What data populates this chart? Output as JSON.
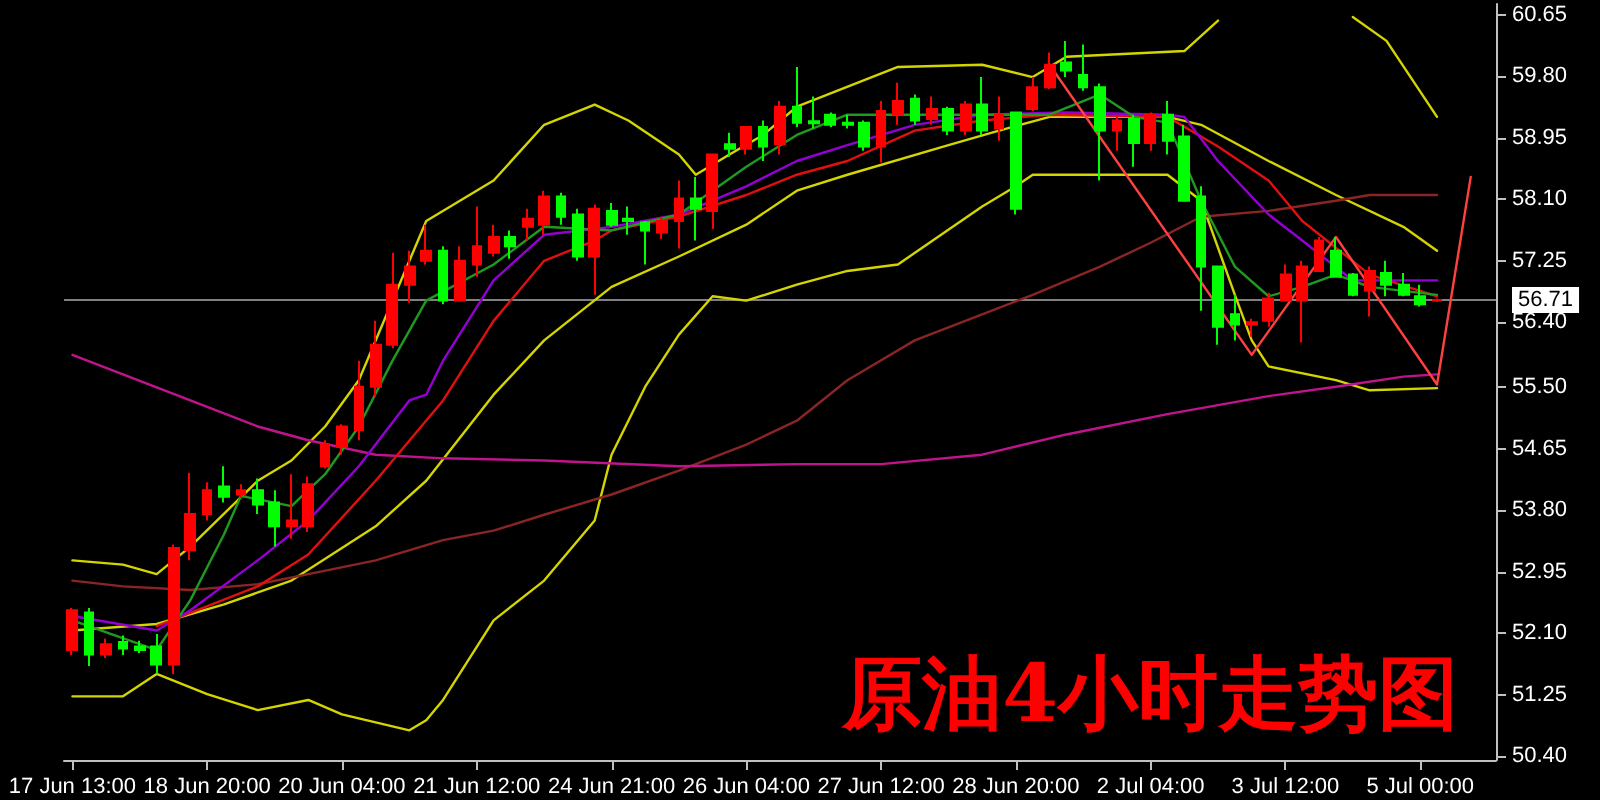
{
  "chart_data": {
    "type": "candlestick",
    "title": "原油4小时走势图",
    "categories": [
      "17 Jun 13:00",
      null,
      null,
      null,
      null,
      null,
      null,
      null,
      "18 Jun 20:00",
      null,
      null,
      null,
      null,
      null,
      null,
      null,
      "20 Jun 04:00",
      null,
      null,
      null,
      null,
      null,
      null,
      null,
      "21 Jun 12:00",
      null,
      null,
      null,
      null,
      null,
      null,
      null,
      "24 Jun 21:00",
      null,
      null,
      null,
      null,
      null,
      null,
      null,
      "26 Jun 04:00",
      null,
      null,
      null,
      null,
      null,
      null,
      null,
      "27 Jun 12:00",
      null,
      null,
      null,
      null,
      null,
      null,
      null,
      "28 Jun 20:00",
      null,
      null,
      null,
      null,
      null,
      null,
      null,
      "2 Jul 04:00",
      null,
      null,
      null,
      null,
      null,
      null,
      null,
      "3 Jul 12:00",
      null,
      null,
      null,
      null,
      null,
      null,
      null,
      "5 Jul 00:00",
      null,
      null,
      null,
      null
    ],
    "ohlc": [
      [
        51.87,
        52.45,
        51.8,
        52.42
      ],
      [
        52.39,
        52.45,
        51.65,
        51.81
      ],
      [
        51.81,
        52.03,
        51.76,
        51.95
      ],
      [
        51.98,
        52.07,
        51.8,
        51.89
      ],
      [
        51.92,
        52.0,
        51.83,
        51.87
      ],
      [
        51.92,
        52.09,
        51.54,
        51.67
      ],
      [
        51.67,
        53.33,
        51.54,
        53.28
      ],
      [
        53.25,
        54.32,
        53.11,
        53.75
      ],
      [
        53.75,
        54.19,
        53.66,
        54.08
      ],
      [
        54.13,
        54.41,
        53.91,
        53.99
      ],
      [
        54.02,
        54.16,
        53.97,
        54.08
      ],
      [
        54.08,
        54.24,
        53.75,
        53.88
      ],
      [
        53.91,
        54.08,
        53.3,
        53.58
      ],
      [
        53.58,
        54.3,
        53.41,
        53.66
      ],
      [
        53.58,
        54.27,
        53.5,
        54.16
      ],
      [
        54.41,
        54.77,
        54.38,
        54.71
      ],
      [
        54.68,
        54.99,
        54.57,
        54.96
      ],
      [
        54.91,
        55.87,
        54.77,
        55.51
      ],
      [
        55.51,
        56.42,
        55.37,
        56.09
      ],
      [
        56.09,
        57.36,
        56.04,
        56.92
      ],
      [
        56.92,
        57.39,
        56.67,
        57.17
      ],
      [
        57.25,
        57.75,
        57.2,
        57.39
      ],
      [
        57.39,
        57.45,
        56.65,
        56.7
      ],
      [
        56.7,
        57.45,
        56.7,
        57.25
      ],
      [
        57.2,
        58.0,
        57.03,
        57.45
      ],
      [
        57.36,
        57.75,
        57.31,
        57.58
      ],
      [
        57.58,
        57.67,
        57.28,
        57.45
      ],
      [
        57.72,
        57.97,
        57.53,
        57.83
      ],
      [
        57.75,
        58.22,
        57.61,
        58.14
      ],
      [
        58.14,
        58.19,
        57.75,
        57.86
      ],
      [
        57.89,
        57.97,
        57.25,
        57.31
      ],
      [
        57.31,
        58.03,
        56.78,
        57.97
      ],
      [
        57.94,
        58.05,
        57.72,
        57.75
      ],
      [
        57.83,
        58.0,
        57.61,
        57.8
      ],
      [
        57.78,
        57.8,
        57.2,
        57.67
      ],
      [
        57.64,
        57.86,
        57.55,
        57.8
      ],
      [
        57.8,
        58.36,
        57.42,
        58.11
      ],
      [
        58.11,
        58.41,
        57.53,
        57.97
      ],
      [
        57.94,
        58.72,
        57.69,
        58.72
      ],
      [
        58.86,
        59.02,
        58.69,
        58.8
      ],
      [
        58.8,
        59.1,
        58.72,
        59.1
      ],
      [
        59.1,
        59.19,
        58.63,
        58.83
      ],
      [
        58.86,
        59.46,
        58.72,
        59.38
      ],
      [
        59.38,
        59.93,
        59.1,
        59.16
      ],
      [
        59.18,
        59.52,
        59.08,
        59.15
      ],
      [
        59.27,
        59.3,
        59.1,
        59.13
      ],
      [
        59.16,
        59.27,
        59.08,
        59.13
      ],
      [
        59.16,
        59.19,
        58.77,
        58.83
      ],
      [
        58.83,
        59.46,
        58.61,
        59.32
      ],
      [
        59.27,
        59.71,
        59.13,
        59.46
      ],
      [
        59.49,
        59.55,
        59.13,
        59.19
      ],
      [
        59.21,
        59.52,
        59.13,
        59.35
      ],
      [
        59.35,
        59.38,
        58.99,
        59.05
      ],
      [
        59.05,
        59.46,
        58.99,
        59.41
      ],
      [
        59.41,
        59.79,
        58.99,
        59.05
      ],
      [
        59.08,
        59.52,
        58.91,
        59.27
      ],
      [
        59.3,
        59.3,
        57.89,
        57.97
      ],
      [
        59.35,
        59.79,
        59.32,
        59.65
      ],
      [
        59.65,
        60.13,
        59.62,
        59.96
      ],
      [
        59.99,
        60.29,
        59.79,
        59.88
      ],
      [
        59.82,
        60.24,
        59.6,
        59.65
      ],
      [
        59.65,
        59.7,
        58.36,
        59.05
      ],
      [
        59.05,
        59.27,
        58.77,
        59.19
      ],
      [
        59.21,
        59.27,
        58.55,
        58.88
      ],
      [
        58.88,
        59.3,
        58.77,
        59.27
      ],
      [
        59.27,
        59.46,
        58.72,
        58.91
      ],
      [
        58.97,
        59.13,
        58.08,
        58.08
      ],
      [
        58.14,
        58.28,
        56.56,
        57.17
      ],
      [
        57.17,
        57.17,
        56.09,
        56.34
      ],
      [
        56.51,
        56.78,
        56.15,
        56.37
      ],
      [
        56.37,
        56.45,
        56.2,
        56.4
      ],
      [
        56.42,
        56.81,
        56.34,
        56.73
      ],
      [
        56.7,
        57.2,
        56.7,
        57.06
      ],
      [
        56.7,
        57.25,
        56.12,
        57.17
      ],
      [
        57.11,
        57.58,
        57.11,
        57.53
      ],
      [
        57.39,
        57.58,
        57.03,
        57.03
      ],
      [
        57.06,
        57.08,
        56.76,
        56.78
      ],
      [
        56.84,
        57.17,
        56.48,
        57.11
      ],
      [
        57.08,
        57.25,
        56.76,
        56.92
      ],
      [
        56.92,
        57.08,
        56.76,
        56.78
      ],
      [
        56.76,
        56.92,
        56.62,
        56.65
      ],
      [
        56.7,
        56.73,
        56.68,
        56.71
      ],
      null,
      null,
      null
    ],
    "colors": [
      "#ff0000",
      "#00ff00",
      "#ff0000",
      "#00ff00",
      "#00ff00",
      "#00ff00",
      "#ff0000",
      "#ff0000",
      "#ff0000",
      "#00ff00",
      "#ff0000",
      "#00ff00",
      "#00ff00",
      "#ff0000",
      "#ff0000",
      "#ff0000",
      "#ff0000",
      "#ff0000",
      "#ff0000",
      "#ff0000",
      "#ff0000",
      "#ff0000",
      "#00ff00",
      "#ff0000",
      "#ff0000",
      "#ff0000",
      "#00ff00",
      "#ff0000",
      "#ff0000",
      "#00ff00",
      "#00ff00",
      "#ff0000",
      "#00ff00",
      "#00ff00",
      "#00ff00",
      "#ff0000",
      "#ff0000",
      "#00ff00",
      "#ff0000",
      "#00ff00",
      "#ff0000",
      "#00ff00",
      "#ff0000",
      "#00ff00",
      "#00ff00",
      "#00ff00",
      "#00ff00",
      "#00ff00",
      "#ff0000",
      "#ff0000",
      "#00ff00",
      "#ff0000",
      "#00ff00",
      "#ff0000",
      "#00ff00",
      "#ff0000",
      "#00ff00",
      "#ff0000",
      "#ff0000",
      "#00ff00",
      "#00ff00",
      "#00ff00",
      "#ff0000",
      "#00ff00",
      "#ff0000",
      "#00ff00",
      "#00ff00",
      "#00ff00",
      "#00ff00",
      "#00ff00",
      "#ff0000",
      "#ff0000",
      "#ff0000",
      "#ff0000",
      "#ff0000",
      "#00ff00",
      "#00ff00",
      "#ff0000",
      "#00ff00",
      "#00ff00",
      "#00ff00",
      "#ff0000",
      null,
      null,
      null
    ],
    "series": [
      {
        "type": "line",
        "color": "#d4d400",
        "values": [
          53.11,
          null,
          null,
          53.05,
          null,
          52.92,
          null,
          53.3,
          null,
          null,
          null,
          54.21,
          null,
          54.49,
          null,
          54.96,
          null,
          55.6,
          null,
          null,
          null,
          57.8,
          null,
          null,
          null,
          58.36,
          null,
          null,
          59.13,
          null,
          null,
          59.41,
          null,
          59.19,
          null,
          null,
          58.72,
          58.44,
          null,
          58.72,
          null,
          58.99,
          null,
          59.38,
          null,
          null,
          null,
          null,
          null,
          59.93,
          null,
          null,
          null,
          null,
          59.96,
          null,
          null,
          59.79,
          null,
          60.07,
          null,
          null,
          null,
          null,
          null,
          null,
          60.15,
          null,
          60.57,
          null,
          null,
          null,
          null,
          null,
          null,
          null,
          null,
          null,
          null,
          null,
          null,
          null,
          null,
          null,
          null
        ]
      },
      {
        "type": "line",
        "color": "#d4d400",
        "values": [
          null,
          null,
          null,
          null,
          null,
          null,
          null,
          null,
          null,
          null,
          null,
          null,
          null,
          null,
          null,
          null,
          null,
          null,
          null,
          null,
          null,
          null,
          null,
          null,
          null,
          null,
          null,
          null,
          null,
          null,
          null,
          null,
          null,
          null,
          null,
          null,
          null,
          null,
          null,
          null,
          null,
          null,
          null,
          null,
          null,
          null,
          null,
          null,
          null,
          null,
          null,
          null,
          null,
          null,
          null,
          null,
          null,
          null,
          null,
          null,
          null,
          null,
          null,
          null,
          null,
          null,
          null,
          null,
          null,
          null,
          null,
          null,
          null,
          null,
          null,
          null,
          60.62,
          null,
          60.29,
          null,
          null,
          59.24,
          null,
          null,
          null
        ]
      },
      {
        "type": "line",
        "color": "#d4d400",
        "values": [
          51.23,
          null,
          null,
          51.23,
          null,
          51.54,
          null,
          null,
          51.26,
          null,
          null,
          51.04,
          null,
          null,
          51.18,
          null,
          50.98,
          null,
          null,
          null,
          50.76,
          50.9,
          51.18,
          null,
          null,
          52.28,
          null,
          null,
          52.83,
          null,
          null,
          53.66,
          54.57,
          null,
          55.51,
          null,
          56.23,
          null,
          56.76,
          null,
          56.7,
          null,
          null,
          56.92,
          null,
          null,
          57.11,
          null,
          null,
          57.2,
          null,
          null,
          null,
          null,
          58.0,
          null,
          58.28,
          58.44,
          null,
          null,
          null,
          null,
          null,
          null,
          null,
          58.44,
          null,
          58.08,
          null,
          56.78,
          56.15,
          55.79,
          null,
          null,
          null,
          55.6,
          null,
          55.46,
          null,
          null,
          null,
          55.49,
          null,
          null,
          null
        ]
      },
      {
        "type": "line",
        "color": "#d4d400",
        "values": [
          52.14,
          null,
          null,
          null,
          null,
          52.23,
          null,
          null,
          null,
          52.5,
          null,
          null,
          null,
          52.83,
          null,
          null,
          null,
          null,
          53.58,
          null,
          null,
          54.21,
          null,
          null,
          null,
          55.4,
          null,
          null,
          56.15,
          null,
          null,
          null,
          56.89,
          null,
          null,
          null,
          57.31,
          null,
          null,
          null,
          57.75,
          null,
          null,
          58.22,
          null,
          null,
          58.44,
          null,
          null,
          null,
          null,
          null,
          58.85,
          null,
          null,
          59.05,
          null,
          null,
          59.24,
          null,
          null,
          null,
          null,
          null,
          null,
          59.24,
          null,
          59.13,
          null,
          null,
          null,
          58.63,
          null,
          null,
          null,
          58.16,
          null,
          null,
          null,
          57.72,
          null,
          57.39,
          null,
          null,
          null
        ]
      },
      {
        "type": "line",
        "color": "#8b2525",
        "values": [
          52.83,
          null,
          null,
          52.75,
          null,
          null,
          null,
          52.7,
          null,
          null,
          null,
          52.78,
          null,
          null,
          52.92,
          null,
          null,
          null,
          53.11,
          null,
          null,
          null,
          53.39,
          null,
          null,
          53.52,
          null,
          null,
          53.74,
          null,
          null,
          null,
          54.02,
          null,
          null,
          null,
          54.35,
          null,
          null,
          null,
          54.71,
          null,
          null,
          55.04,
          null,
          null,
          55.6,
          null,
          null,
          null,
          56.15,
          null,
          null,
          null,
          56.51,
          null,
          null,
          56.78,
          null,
          null,
          null,
          57.17,
          null,
          null,
          57.5,
          null,
          null,
          57.86,
          null,
          null,
          null,
          57.94,
          null,
          null,
          null,
          58.08,
          null,
          58.16,
          null,
          null,
          null,
          58.16,
          null,
          null,
          null
        ]
      },
      {
        "type": "line",
        "color": "#c0148c",
        "values": [
          55.95,
          null,
          null,
          55.68,
          null,
          null,
          null,
          55.32,
          null,
          null,
          null,
          54.96,
          null,
          null,
          54.77,
          null,
          null,
          null,
          54.57,
          null,
          null,
          null,
          54.52,
          null,
          null,
          null,
          null,
          null,
          54.49,
          null,
          null,
          null,
          null,
          null,
          null,
          null,
          54.41,
          null,
          null,
          null,
          null,
          null,
          null,
          54.44,
          null,
          null,
          null,
          null,
          54.44,
          null,
          null,
          null,
          null,
          null,
          54.57,
          null,
          null,
          null,
          null,
          54.85,
          null,
          null,
          null,
          null,
          null,
          55.13,
          null,
          null,
          null,
          null,
          null,
          55.38,
          null,
          null,
          null,
          55.51,
          null,
          null,
          null,
          55.65,
          null,
          55.68,
          null,
          null,
          null
        ]
      },
      {
        "type": "line",
        "color": "#e01010",
        "values": [
          null,
          null,
          null,
          null,
          null,
          52.2,
          null,
          null,
          null,
          null,
          null,
          52.75,
          null,
          null,
          53.19,
          null,
          null,
          null,
          54.21,
          null,
          null,
          null,
          55.32,
          null,
          null,
          56.42,
          null,
          null,
          57.25,
          null,
          null,
          57.53,
          57.67,
          null,
          null,
          null,
          57.86,
          null,
          null,
          null,
          58.16,
          null,
          null,
          58.44,
          null,
          null,
          58.63,
          null,
          null,
          null,
          59.05,
          null,
          null,
          null,
          59.19,
          null,
          null,
          null,
          59.27,
          null,
          null,
          null,
          null,
          null,
          null,
          59.24,
          null,
          null,
          58.83,
          null,
          null,
          58.36,
          null,
          57.8,
          null,
          null,
          null,
          57.06,
          null,
          null,
          null,
          56.76,
          null,
          null,
          null
        ]
      },
      {
        "type": "line",
        "color": "#9400d3",
        "values": [
          52.34,
          null,
          null,
          null,
          null,
          52.14,
          null,
          52.42,
          null,
          null,
          null,
          53.11,
          null,
          null,
          53.66,
          null,
          null,
          54.41,
          null,
          null,
          55.32,
          55.4,
          55.87,
          null,
          null,
          56.98,
          null,
          null,
          57.61,
          null,
          null,
          null,
          57.72,
          null,
          null,
          null,
          57.89,
          null,
          null,
          null,
          58.28,
          null,
          null,
          58.63,
          null,
          null,
          58.85,
          null,
          null,
          null,
          59.13,
          null,
          null,
          null,
          59.27,
          null,
          null,
          null,
          null,
          59.3,
          null,
          null,
          null,
          null,
          null,
          59.27,
          59.24,
          null,
          58.63,
          null,
          null,
          57.89,
          null,
          57.53,
          null,
          null,
          56.98,
          null,
          null,
          null,
          null,
          56.98,
          null,
          null,
          null
        ]
      },
      {
        "type": "line",
        "color": "#1f9a1f",
        "values": [
          52.28,
          null,
          null,
          null,
          null,
          51.87,
          null,
          52.56,
          null,
          53.47,
          54.0,
          null,
          null,
          53.86,
          null,
          54.3,
          null,
          54.96,
          null,
          55.87,
          null,
          56.7,
          null,
          null,
          null,
          57.2,
          null,
          null,
          57.72,
          null,
          null,
          null,
          57.67,
          null,
          null,
          null,
          57.89,
          null,
          null,
          null,
          58.55,
          null,
          null,
          58.99,
          null,
          null,
          59.27,
          null,
          null,
          null,
          null,
          null,
          null,
          null,
          59.27,
          null,
          null,
          null,
          59.27,
          null,
          null,
          59.55,
          null,
          59.24,
          null,
          59.16,
          null,
          58.08,
          null,
          57.17,
          null,
          56.76,
          null,
          56.89,
          null,
          57.06,
          null,
          56.89,
          null,
          null,
          null,
          56.78,
          null,
          null,
          null
        ]
      },
      {
        "type": "line",
        "color": "#ff4040",
        "values": [
          null,
          null,
          null,
          null,
          null,
          null,
          null,
          null,
          null,
          null,
          null,
          null,
          null,
          null,
          null,
          null,
          null,
          null,
          null,
          null,
          null,
          null,
          null,
          null,
          null,
          null,
          null,
          null,
          null,
          null,
          null,
          null,
          null,
          null,
          null,
          null,
          null,
          null,
          null,
          null,
          null,
          null,
          null,
          null,
          null,
          null,
          null,
          null,
          null,
          null,
          null,
          null,
          null,
          null,
          null,
          null,
          null,
          null,
          59.96,
          null,
          null,
          null,
          null,
          null,
          null,
          null,
          null,
          null,
          null,
          null,
          55.95,
          null,
          null,
          null,
          null,
          57.58,
          null,
          null,
          null,
          null,
          null,
          55.54,
          null,
          58.41,
          null
        ]
      }
    ],
    "ref_lines": [
      {
        "axis": "y",
        "value": 56.71,
        "label": "56.71",
        "color": "#808080"
      }
    ],
    "ylim": [
      50.35,
      60.8
    ],
    "yticks": [
      {
        "value": 50.4,
        "label": "50.40"
      },
      {
        "value": 51.25,
        "label": "51.25"
      },
      {
        "value": 52.1,
        "label": "52.10"
      },
      {
        "value": 52.95,
        "label": "52.95"
      },
      {
        "value": 53.8,
        "label": "53.80"
      },
      {
        "value": 54.65,
        "label": "54.65"
      },
      {
        "value": 55.5,
        "label": "55.50"
      },
      {
        "value": 56.4,
        "label": "56.40"
      },
      {
        "value": 57.25,
        "label": "57.25"
      },
      {
        "value": 58.1,
        "label": "58.10"
      },
      {
        "value": 58.95,
        "label": "58.95"
      },
      {
        "value": 59.8,
        "label": "59.80"
      },
      {
        "value": 60.65,
        "label": "60.65"
      }
    ],
    "grid": false
  }
}
